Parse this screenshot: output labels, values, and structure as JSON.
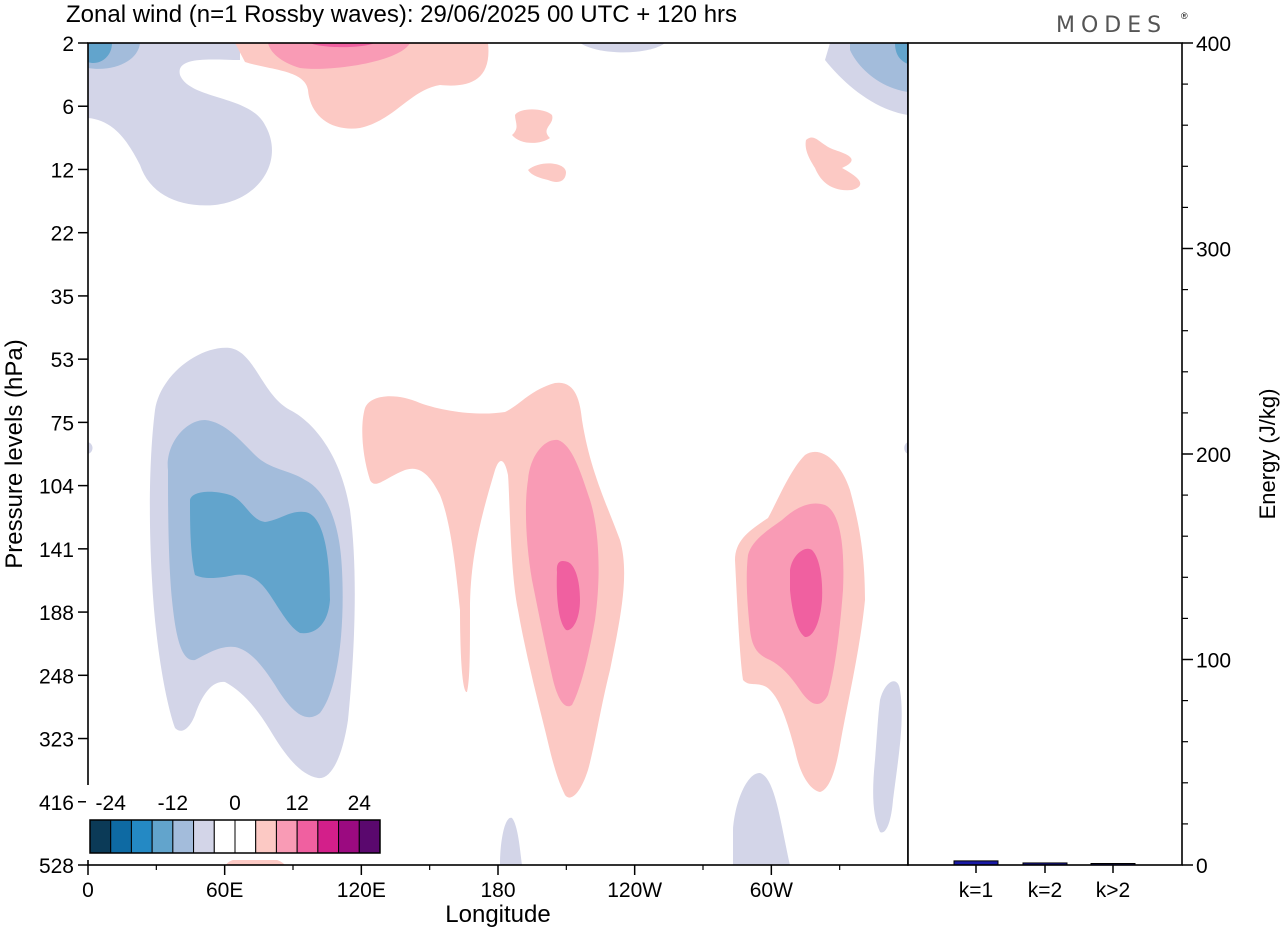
{
  "brand": {
    "name": "MODES",
    "mark": "®"
  },
  "chart_data": [
    {
      "type": "heatmap",
      "title": "Zonal wind (n=1 Rossby waves):  29/06/2025  00 UTC  + 120 hrs",
      "xlabel": "Longitude",
      "ylabel": "Pressure levels (hPa)",
      "x_ticks": [
        "0",
        "60E",
        "120E",
        "180",
        "120W",
        "60W"
      ],
      "x_tick_positions_deg": [
        0,
        60,
        120,
        180,
        240,
        300
      ],
      "xlim": [
        0,
        360
      ],
      "y_ticks": [
        "2",
        "6",
        "12",
        "22",
        "35",
        "53",
        "75",
        "104",
        "141",
        "188",
        "248",
        "323",
        "416",
        "528"
      ],
      "y_scale": "pressure levels (equally spaced)",
      "legend": {
        "placement": "bottom-left",
        "labels": [
          "-24",
          "-12",
          "0",
          "12",
          "24"
        ],
        "colors": [
          "#0b3a57",
          "#0e6aa3",
          "#2489c4",
          "#62a4cc",
          "#a3bcdb",
          "#d3d5e8",
          "#ffffff",
          "#ffffff",
          "#fcc9c4",
          "#f99bb5",
          "#f060a0",
          "#d31f8a",
          "#9b0a80",
          "#5a086e"
        ]
      },
      "features": [
        {
          "sign": "negative",
          "longitude_deg": 48,
          "pressure_hPa": 141,
          "peak_m_s": -12
        },
        {
          "sign": "positive",
          "longitude_deg": 210,
          "pressure_hPa": 150,
          "peak_m_s": 12
        },
        {
          "sign": "positive",
          "longitude_deg": 315,
          "pressure_hPa": 160,
          "peak_m_s": 12
        },
        {
          "sign": "positive",
          "longitude_deg": 110,
          "pressure_hPa": 2,
          "peak_m_s": 6
        },
        {
          "sign": "negative",
          "longitude_deg": 40,
          "pressure_hPa": 8,
          "peak_m_s": -3
        }
      ]
    },
    {
      "type": "bar",
      "ylabel": "Energy (J/kg)",
      "categories": [
        "k=1",
        "k=2",
        "k>2"
      ],
      "values": [
        2,
        1,
        0.5
      ],
      "ylim": [
        0,
        400
      ],
      "y_ticks": [
        "0",
        "100",
        "200",
        "300",
        "400"
      ],
      "bar_color": "#1a1aa6"
    }
  ]
}
